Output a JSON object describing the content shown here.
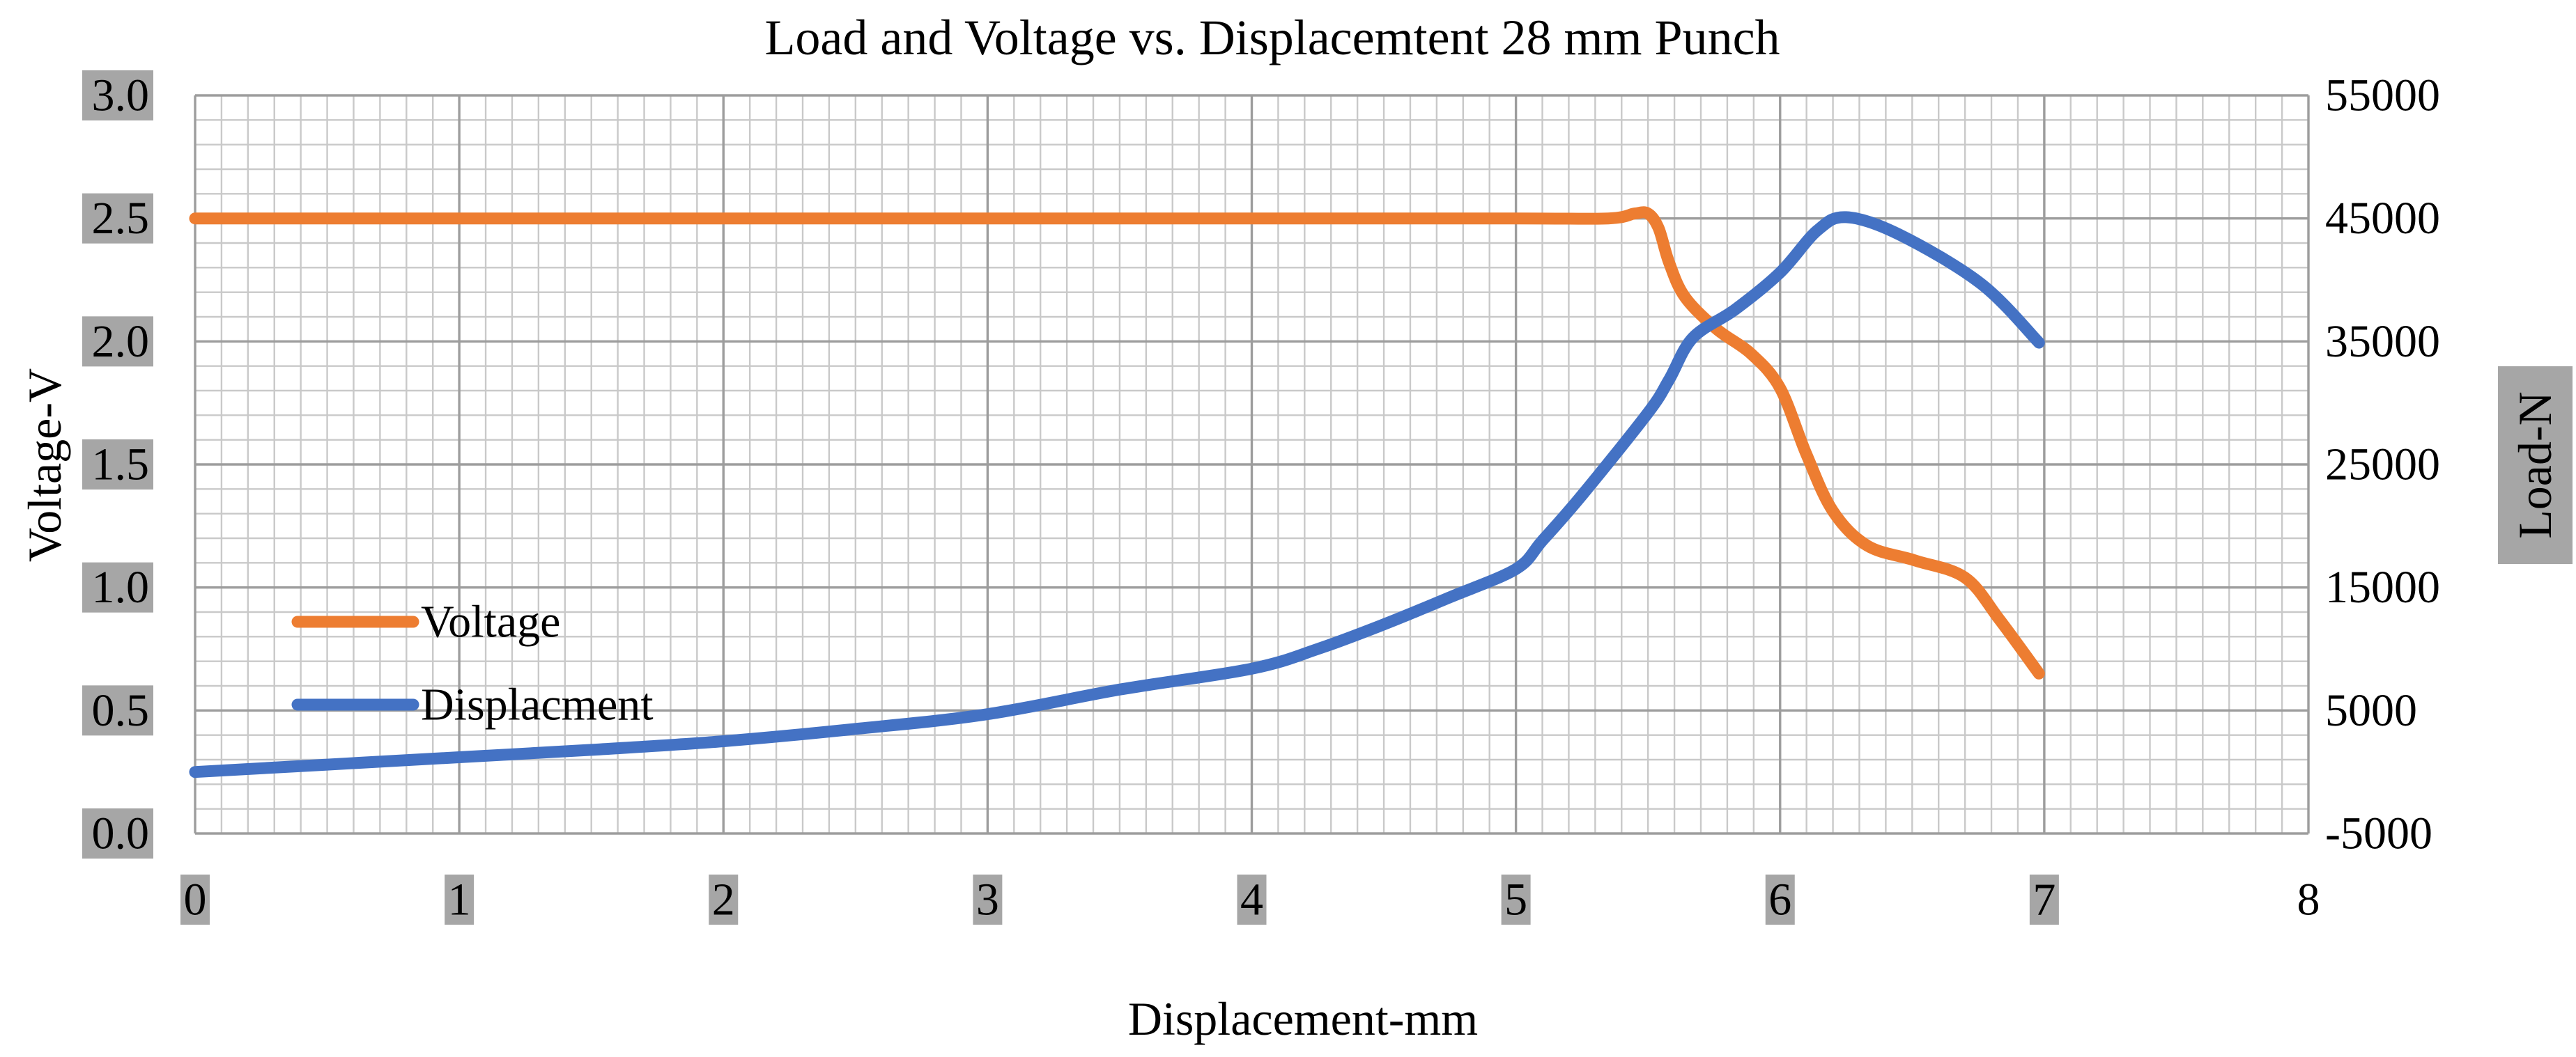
{
  "chart_data": {
    "type": "line",
    "title": "Load and Voltage vs. Displacemtent 28 mm Punch",
    "xlabel": "Displacement-mm",
    "ylabel": "Voltage-V",
    "y2label": "Load-N",
    "xlim": [
      0,
      8
    ],
    "ylim": [
      0,
      3.0
    ],
    "y2lim": [
      -5000,
      55000
    ],
    "xticks": [
      0,
      1,
      2,
      3,
      4,
      5,
      6,
      7,
      8
    ],
    "xtick_labels": [
      "0",
      "1",
      "2",
      "3",
      "4",
      "5",
      "6",
      "7",
      "8"
    ],
    "xtick_boxed": [
      true,
      true,
      true,
      true,
      true,
      true,
      true,
      true,
      false
    ],
    "yticks": [
      0,
      0.5,
      1.0,
      1.5,
      2.0,
      2.5,
      3.0
    ],
    "ytick_labels": [
      "0.0",
      "0.5",
      "1.0",
      "1.5",
      "2.0",
      "2.5",
      "3.0"
    ],
    "y2ticks": [
      -5000,
      5000,
      15000,
      25000,
      35000,
      45000,
      55000
    ],
    "y2tick_labels": [
      "-5000",
      "5000",
      "15000",
      "25000",
      "35000",
      "45000",
      "55000"
    ],
    "grid": true,
    "series": [
      {
        "name": "Voltage",
        "y_axis_index": 0,
        "color": "#ED7D31",
        "x": [
          0,
          1,
          2,
          3,
          4,
          5,
          5.35,
          5.45,
          5.5,
          5.54,
          5.58,
          5.64,
          5.76,
          5.89,
          6.0,
          6.1,
          6.2,
          6.33,
          6.51,
          6.7,
          6.83,
          6.98
        ],
        "y": [
          2.5,
          2.5,
          2.5,
          2.5,
          2.5,
          2.5,
          2.5,
          2.52,
          2.52,
          2.46,
          2.32,
          2.18,
          2.05,
          1.95,
          1.81,
          1.54,
          1.31,
          1.17,
          1.11,
          1.04,
          0.87,
          0.65
        ]
      },
      {
        "name": "Displacment",
        "y_axis_index": 1,
        "color": "#4472C4",
        "x": [
          0,
          0.5,
          1,
          1.5,
          2,
          2.5,
          3,
          3.5,
          4,
          4.25,
          4.5,
          4.75,
          5,
          5.1,
          5.25,
          5.5,
          5.58,
          5.67,
          5.83,
          6.0,
          6.14,
          6.25,
          6.45,
          6.76,
          6.98
        ],
        "y": [
          0,
          600,
          1200,
          1800,
          2500,
          3500,
          4700,
          6700,
          8400,
          10000,
          12000,
          14200,
          16500,
          18800,
          22500,
          29200,
          31900,
          35300,
          37600,
          40600,
          44000,
          45100,
          43700,
          39700,
          34900
        ]
      }
    ]
  },
  "colors": {
    "label_box": "#a6a6a6",
    "background": "#ffffff"
  }
}
